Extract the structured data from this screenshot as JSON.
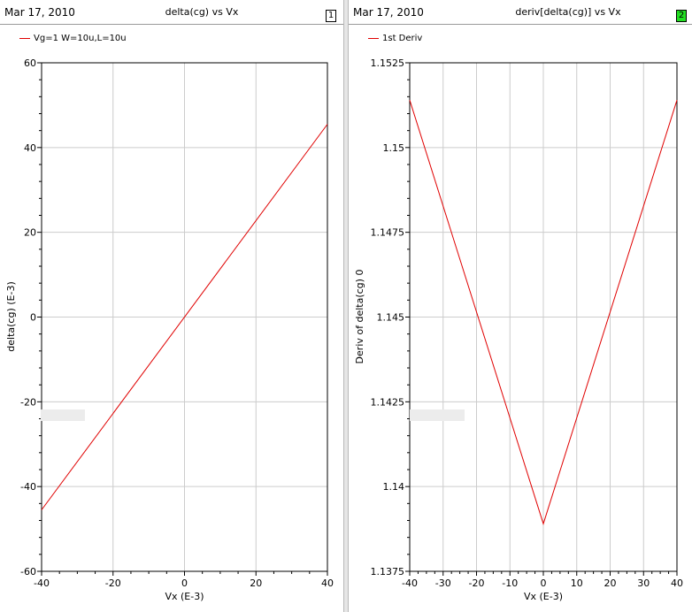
{
  "colors": {
    "series": "#e00000",
    "grid": "#cccccc",
    "active_badge": "#22e022"
  },
  "panels": [
    {
      "date": "Mar 17, 2010",
      "title": "delta(cg) vs Vx",
      "badge": "1",
      "legend": "Vg=1 W=10u,L=10u"
    },
    {
      "date": "Mar 17, 2010",
      "title": "deriv[delta(cg)] vs Vx",
      "badge": "2",
      "legend": "1st Deriv"
    }
  ],
  "chart_data": [
    {
      "type": "line",
      "title": "delta(cg) vs Vx",
      "xlabel": "Vx (E-3)",
      "ylabel": "delta(cg) (E-3)",
      "xlim": [
        -40,
        40
      ],
      "ylim": [
        -60,
        60
      ],
      "xticks": [
        -40,
        -20,
        0,
        20,
        40
      ],
      "xtick_labels": [
        "-40",
        "-20",
        "0",
        "20",
        "40"
      ],
      "yticks": [
        -60,
        -40,
        -20,
        0,
        20,
        40,
        60
      ],
      "ytick_labels": [
        "-60",
        "-40",
        "-20",
        "0",
        "20",
        "40",
        "60"
      ],
      "grid": true,
      "series": [
        {
          "name": "Vg=1 W=10u,L=10u",
          "x": [
            -40,
            40
          ],
          "y": [
            -45.5,
            45.5
          ]
        }
      ]
    },
    {
      "type": "line",
      "title": "deriv[delta(cg)] vs Vx",
      "xlabel": "Vx (E-3)",
      "ylabel": "Deriv of delta(cg) 0",
      "xlim": [
        -40,
        40
      ],
      "ylim": [
        1.1375,
        1.1525
      ],
      "xticks": [
        -40,
        -30,
        -20,
        -10,
        0,
        10,
        20,
        30,
        40
      ],
      "xtick_labels": [
        "-40",
        "-30",
        "-20",
        "-10",
        "0",
        "10",
        "20",
        "30",
        "40"
      ],
      "yticks": [
        1.1375,
        1.14,
        1.1425,
        1.145,
        1.1475,
        1.15,
        1.1525
      ],
      "ytick_labels": [
        "1.1375",
        "1.14",
        "1.1425",
        "1.145",
        "1.1475",
        "1.15",
        "1.1525"
      ],
      "grid": true,
      "series": [
        {
          "name": "1st Deriv",
          "x": [
            -40,
            0,
            40
          ],
          "y": [
            1.1514,
            1.1389,
            1.1514
          ]
        }
      ]
    }
  ]
}
